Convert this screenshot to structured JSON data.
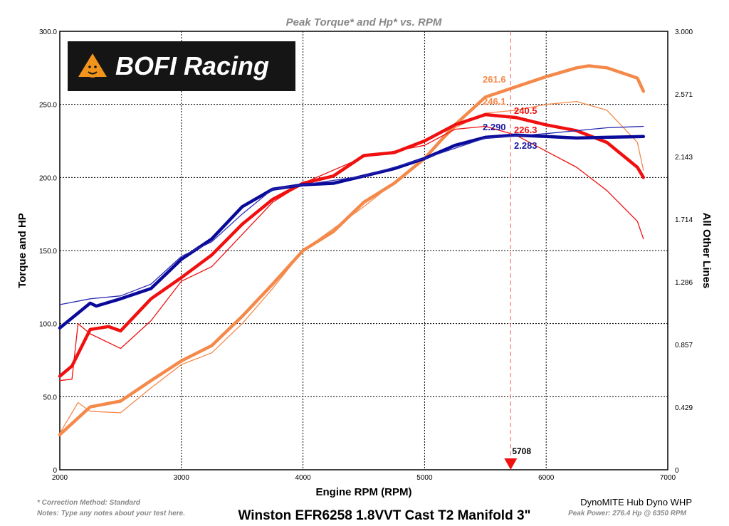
{
  "chart_data": {
    "type": "line",
    "title": "Peak Torque* and Hp* vs. RPM",
    "xlabel": "Engine RPM (RPM)",
    "ylabel": "Torque and HP",
    "y2label": "All Other Lines",
    "xlim": [
      2000,
      7000
    ],
    "ylim": [
      0,
      300
    ],
    "y2lim": [
      0,
      3
    ],
    "xticks": [
      "2000",
      "3000",
      "4000",
      "5000",
      "6000",
      "7000"
    ],
    "yticks": [
      "0",
      "50.0",
      "100.0",
      "150.0",
      "200.0",
      "250.0",
      "300.0"
    ],
    "y2ticks": [
      "0",
      "0.429",
      "0.857",
      "1.286",
      "1.714",
      "2.143",
      "2.571",
      "3.000"
    ],
    "grid": true,
    "series": [
      {
        "color": "#f4894a",
        "weight": "thick",
        "axis": "left",
        "x": [
          2000,
          2250,
          2500,
          2750,
          3000,
          3250,
          3500,
          3750,
          4000,
          4250,
          4500,
          4750,
          5000,
          5250,
          5500,
          5750,
          6000,
          6250,
          6350,
          6500,
          6750,
          6800
        ],
        "y": [
          24,
          43,
          47,
          61,
          74.5,
          85,
          105,
          127,
          150,
          163,
          183,
          196,
          213,
          236,
          255,
          262,
          269,
          275,
          276.4,
          275,
          268,
          259
        ]
      },
      {
        "color": "#f4894a",
        "weight": "thin",
        "axis": "left",
        "x": [
          2000,
          2150,
          2250,
          2500,
          2750,
          3000,
          3250,
          3500,
          3750,
          4000,
          4500,
          5000,
          5250,
          5500,
          5750,
          6000,
          6250,
          6500,
          6750,
          6800
        ],
        "y": [
          25,
          46,
          40,
          39,
          56,
          72,
          80,
          100,
          124,
          150,
          180,
          213,
          234,
          244,
          246,
          250,
          252,
          246,
          224,
          205
        ]
      },
      {
        "color": "#f01010",
        "weight": "thick",
        "axis": "left",
        "x": [
          2000,
          2100,
          2250,
          2400,
          2500,
          2750,
          3000,
          3250,
          3500,
          3750,
          4000,
          4250,
          4500,
          4750,
          5000,
          5250,
          5500,
          5750,
          6000,
          6250,
          6500,
          6750,
          6800
        ],
        "y": [
          64,
          71,
          96,
          98,
          95,
          117,
          131.5,
          147,
          168,
          185,
          196,
          201,
          215,
          217,
          225,
          236,
          243,
          241,
          236,
          232,
          224,
          207,
          200
        ]
      },
      {
        "color": "#f01010",
        "weight": "thin",
        "axis": "left",
        "x": [
          2000,
          2100,
          2150,
          2250,
          2500,
          2750,
          3000,
          3250,
          3500,
          3750,
          4000,
          4500,
          5000,
          5250,
          5500,
          5750,
          6000,
          6250,
          6500,
          6750,
          6800
        ],
        "y": [
          61,
          62,
          100,
          93,
          83,
          102,
          129,
          139,
          161,
          183,
          196,
          214,
          222,
          233,
          235,
          229,
          218,
          207,
          191,
          170,
          158
        ]
      },
      {
        "color": "#0a0a9a",
        "weight": "thick",
        "axis": "right",
        "x": [
          2000,
          2250,
          2300,
          2500,
          2750,
          3000,
          3250,
          3500,
          3750,
          4000,
          4250,
          4500,
          4750,
          5000,
          5250,
          5500,
          5750,
          6000,
          6250,
          6500,
          6800
        ],
        "y": [
          0.97,
          1.14,
          1.12,
          1.17,
          1.24,
          1.44,
          1.58,
          1.8,
          1.92,
          1.95,
          1.96,
          2.01,
          2.06,
          2.13,
          2.22,
          2.275,
          2.29,
          2.28,
          2.27,
          2.275,
          2.28
        ]
      },
      {
        "color": "#2a2ab0",
        "weight": "thin",
        "axis": "right",
        "x": [
          2000,
          2250,
          2500,
          2750,
          3000,
          3250,
          3500,
          3750,
          4000,
          4500,
          5000,
          5500,
          6000,
          6500,
          6800
        ],
        "y": [
          1.13,
          1.17,
          1.19,
          1.27,
          1.46,
          1.56,
          1.75,
          1.92,
          1.95,
          2.01,
          2.13,
          2.27,
          2.3,
          2.34,
          2.35
        ]
      }
    ],
    "annotations": [
      {
        "text": "261.6",
        "color": "#f4894a"
      },
      {
        "text": "246.1",
        "color": "#f4894a"
      },
      {
        "text": "240.5",
        "color": "#f01010"
      },
      {
        "text": "226.3",
        "color": "#f01010"
      },
      {
        "text": "2.290",
        "color": "#1a1aa0"
      },
      {
        "text": "2.283",
        "color": "#1a1aa0"
      }
    ],
    "cursor": {
      "rpm": 5708,
      "label": "5708"
    }
  },
  "logo": {
    "text": "BOFI Racing"
  },
  "footer": {
    "correction": "* Correction Method: Standard",
    "notes": "Notes: Type any notes about your test here.",
    "run_title": "Winston EFR6258 1.8VVT Cast T2 Manifold 3\"",
    "dyno": "DynoMITE Hub Dyno WHP",
    "peak": "Peak Power: 276.4 Hp @ 6350 RPM"
  }
}
